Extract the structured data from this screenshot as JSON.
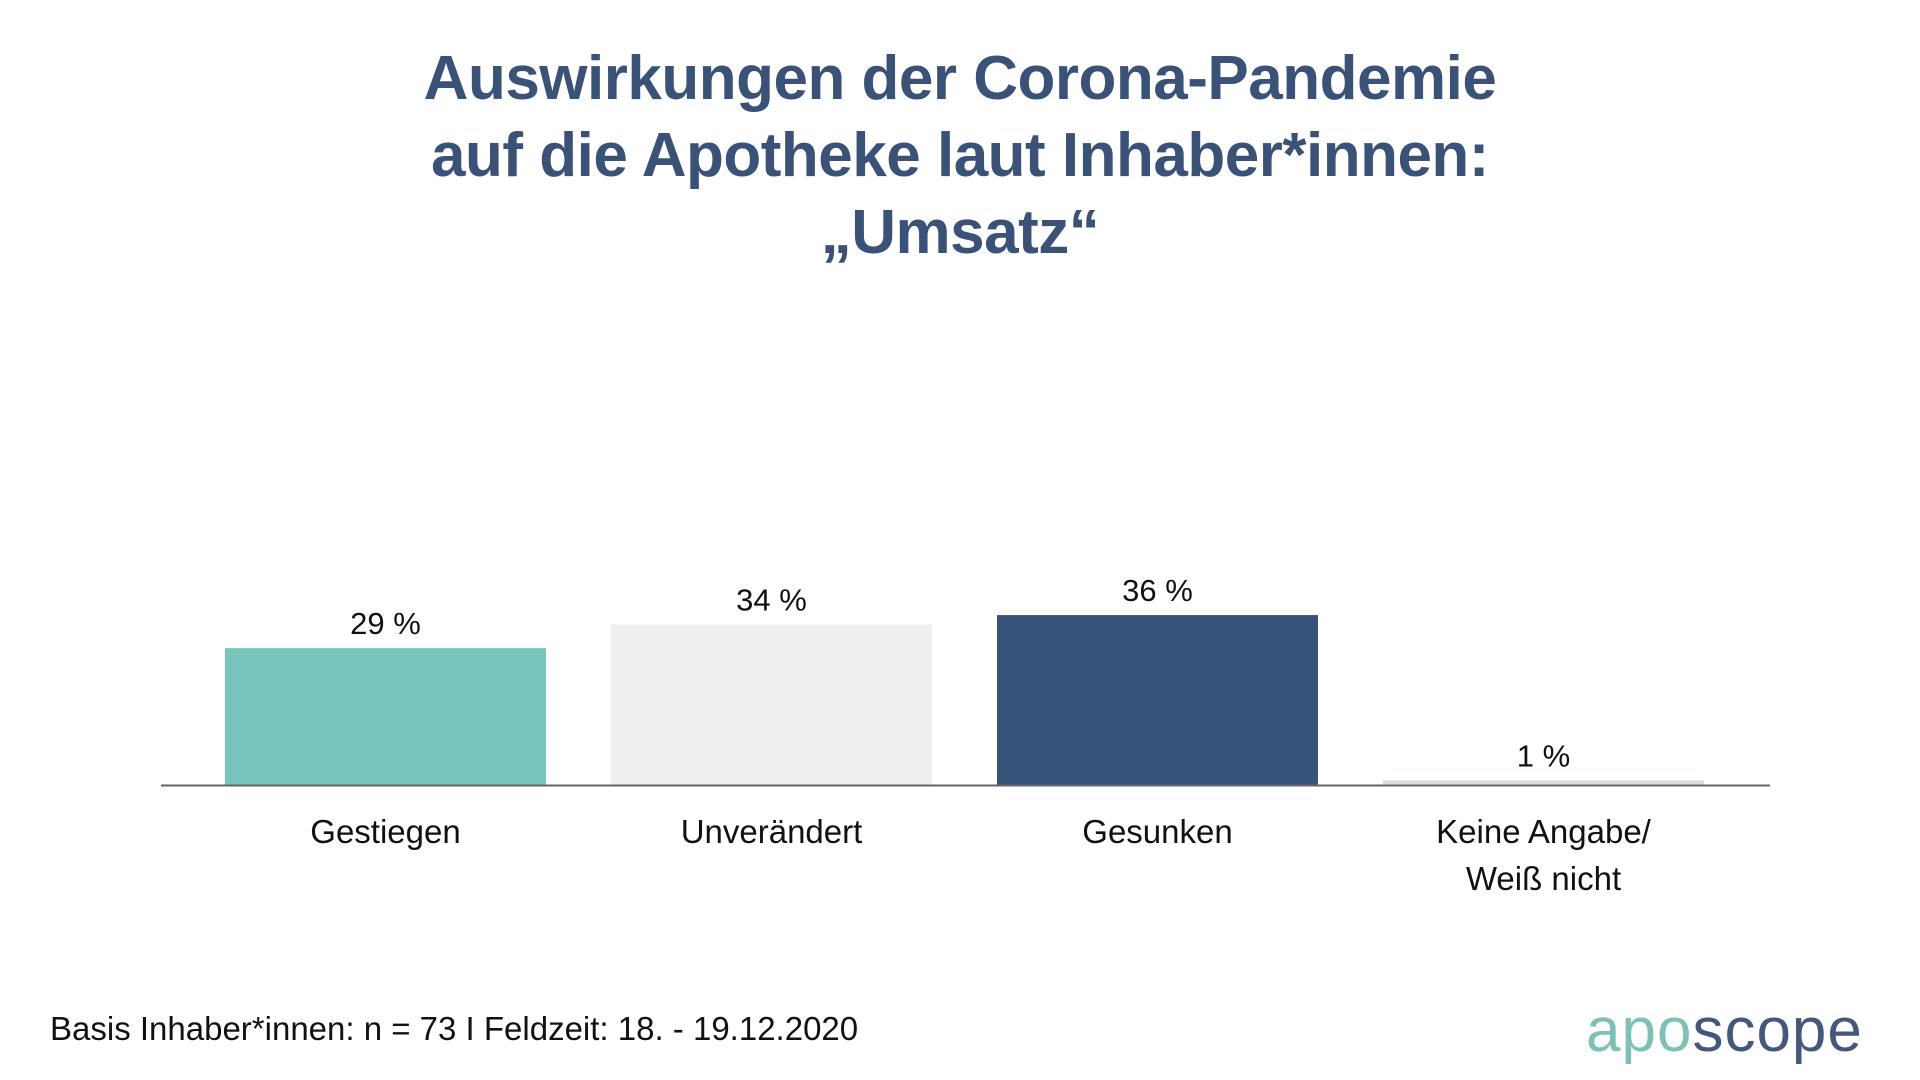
{
  "chart_data": {
    "type": "bar",
    "title": [
      "Auswirkungen der Corona-Pandemie",
      "auf die Apotheke laut Inhaber*innen:",
      "„Umsatz“"
    ],
    "categories": [
      [
        "Gestiegen"
      ],
      [
        "Unverändert"
      ],
      [
        "Gesunken"
      ],
      [
        "Keine Angabe/",
        "Weiß nicht"
      ]
    ],
    "values": [
      29,
      34,
      36,
      1
    ],
    "value_labels": [
      "29 %",
      "34 %",
      "36 %",
      "1 %"
    ],
    "colors": [
      "#78c5bb",
      "#efefef",
      "#38537a",
      "#d9dde3"
    ],
    "xlabel": "",
    "ylabel": "",
    "ylim": [
      0,
      100
    ],
    "grid": false
  },
  "footer": "Basis Inhaber*innen: n = 73 I Feldzeit: 18. - 19.12.2020",
  "logo": {
    "part1": "apo",
    "part2": "scope"
  }
}
